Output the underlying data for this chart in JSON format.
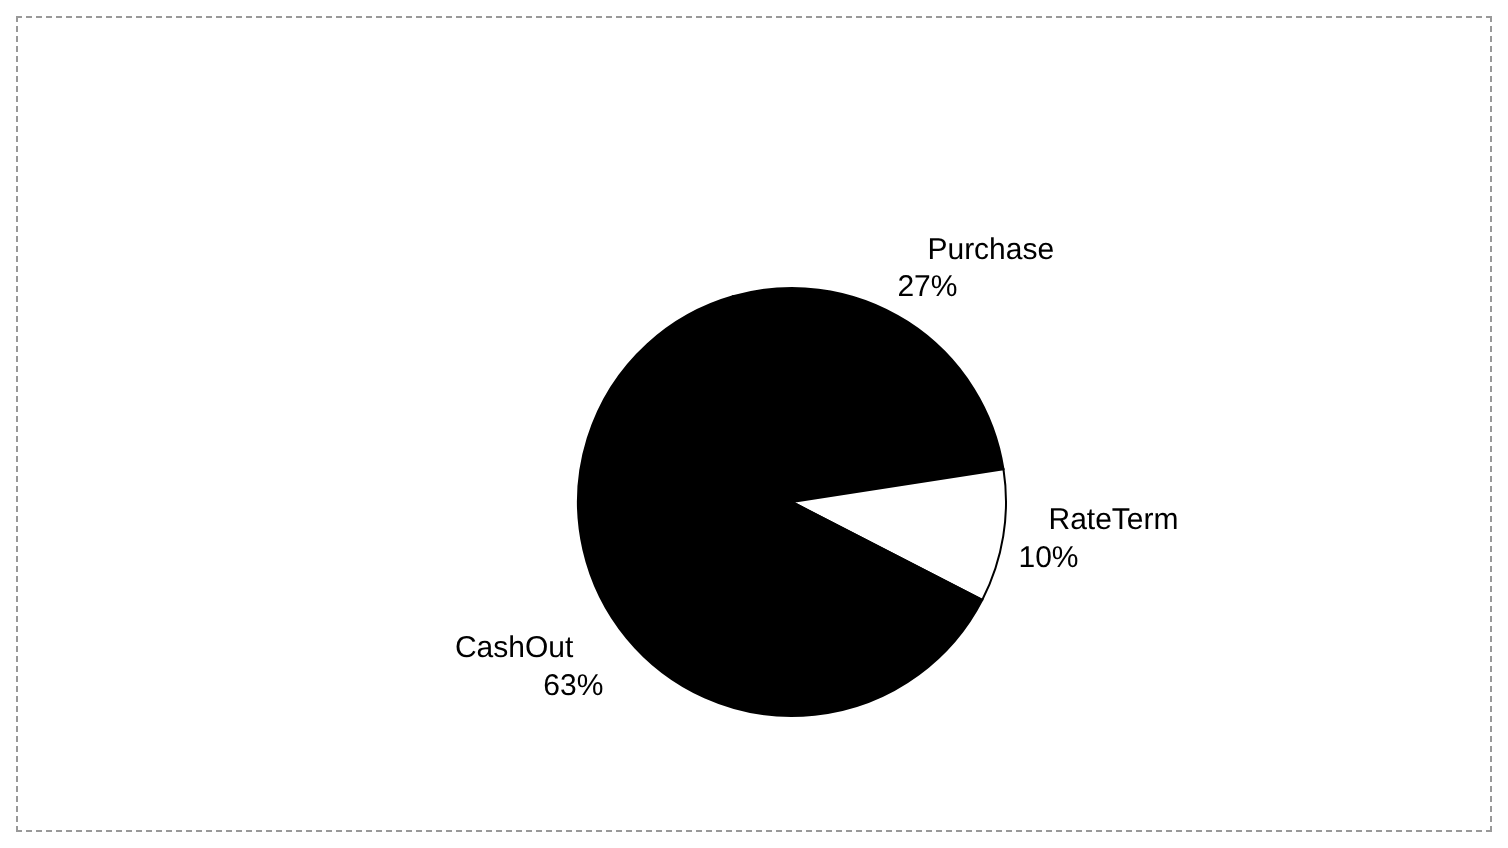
{
  "chart_data": {
    "type": "pie",
    "categories": [
      "Purchase",
      "RateTerm",
      "CashOut"
    ],
    "values": [
      27,
      10,
      63
    ],
    "colors": [
      "#000000",
      "#ffffff",
      "#000000"
    ],
    "value_labels": [
      "27%",
      "10%",
      "63%"
    ],
    "legend": false
  }
}
